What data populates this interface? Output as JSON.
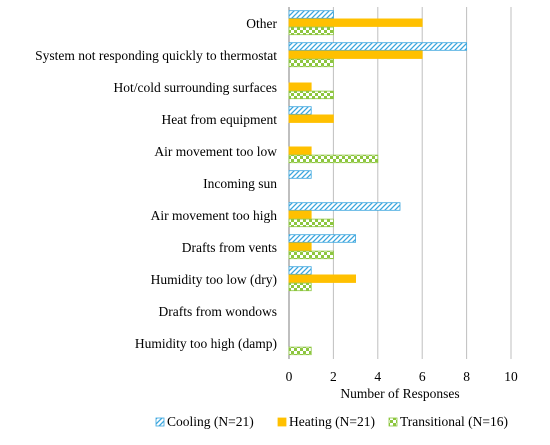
{
  "chart_data": {
    "type": "bar",
    "orientation": "horizontal",
    "categories": [
      "Other",
      "System not responding quickly to thermostat",
      "Hot/cold surrounding surfaces",
      "Heat from equipment",
      "Air movement too low",
      "Incoming sun",
      "Air movement too high",
      "Drafts from vents",
      "Humidity too low (dry)",
      "Drafts from wondows",
      "Humidity too high (damp)"
    ],
    "series": [
      {
        "name": "Cooling (N=21)",
        "values": [
          2,
          8,
          0,
          1,
          0,
          1,
          5,
          3,
          1,
          0,
          0
        ],
        "color": "#4db3e6",
        "pattern": "diagonal-hatch"
      },
      {
        "name": "Heating (N=21)",
        "values": [
          6,
          6,
          1,
          2,
          1,
          0,
          1,
          1,
          3,
          0,
          0
        ],
        "color": "#ffc000",
        "pattern": "solid"
      },
      {
        "name": "Transitional (N=16)",
        "values": [
          2,
          2,
          2,
          0,
          4,
          0,
          2,
          2,
          1,
          0,
          1
        ],
        "color": "#8dc63f",
        "pattern": "checker"
      }
    ],
    "xlabel": "Number of Responses",
    "xlim": [
      0,
      10
    ],
    "xticks": [
      0,
      2,
      4,
      6,
      8,
      10
    ],
    "grid": "vertical",
    "legend": "bottom"
  }
}
